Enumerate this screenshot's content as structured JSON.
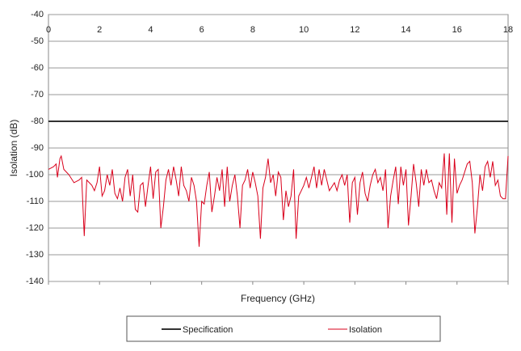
{
  "chart_data": {
    "type": "line",
    "xlabel": "Frequency (GHz)",
    "ylabel": "Isolation (dB)",
    "xlim": [
      0,
      18
    ],
    "xticks": [
      0,
      2,
      4,
      6,
      8,
      10,
      12,
      14,
      16,
      18
    ],
    "ylim": [
      -140,
      -40
    ],
    "yticks": [
      -40,
      -50,
      -60,
      -70,
      -80,
      -90,
      -100,
      -110,
      -120,
      -130,
      -140
    ],
    "grid": true,
    "legend": "bottom",
    "series": [
      {
        "name": "Specification",
        "color": "#333333",
        "x": [
          0,
          18
        ],
        "values": [
          -80,
          -80
        ]
      },
      {
        "name": "Isolation",
        "color": "#d9001b",
        "x": [
          0,
          0.2,
          0.3,
          0.35,
          0.45,
          0.5,
          0.6,
          0.8,
          1.0,
          1.2,
          1.3,
          1.4,
          1.5,
          1.7,
          1.8,
          1.9,
          2.0,
          2.1,
          2.2,
          2.3,
          2.4,
          2.5,
          2.6,
          2.7,
          2.8,
          2.9,
          3.0,
          3.1,
          3.2,
          3.3,
          3.4,
          3.5,
          3.6,
          3.7,
          3.8,
          3.9,
          4.0,
          4.1,
          4.2,
          4.3,
          4.4,
          4.5,
          4.6,
          4.7,
          4.8,
          4.9,
          5.0,
          5.1,
          5.2,
          5.3,
          5.4,
          5.5,
          5.6,
          5.7,
          5.8,
          5.9,
          6.0,
          6.1,
          6.2,
          6.3,
          6.4,
          6.5,
          6.6,
          6.7,
          6.8,
          6.9,
          7.0,
          7.1,
          7.2,
          7.3,
          7.4,
          7.5,
          7.6,
          7.7,
          7.8,
          7.9,
          8.0,
          8.1,
          8.2,
          8.3,
          8.4,
          8.5,
          8.6,
          8.7,
          8.8,
          8.9,
          9.0,
          9.1,
          9.2,
          9.3,
          9.4,
          9.5,
          9.6,
          9.7,
          9.8,
          9.9,
          10.0,
          10.1,
          10.2,
          10.4,
          10.5,
          10.6,
          10.7,
          10.8,
          10.9,
          11.0,
          11.2,
          11.3,
          11.4,
          11.5,
          11.6,
          11.7,
          11.8,
          11.9,
          12.0,
          12.1,
          12.2,
          12.3,
          12.4,
          12.5,
          12.6,
          12.7,
          12.8,
          12.9,
          13.0,
          13.1,
          13.2,
          13.3,
          13.4,
          13.5,
          13.6,
          13.7,
          13.8,
          13.9,
          14.0,
          14.1,
          14.2,
          14.3,
          14.4,
          14.5,
          14.6,
          14.7,
          14.8,
          14.9,
          15.0,
          15.1,
          15.2,
          15.3,
          15.4,
          15.5,
          15.6,
          15.7,
          15.8,
          15.9,
          16.0,
          16.1,
          16.2,
          16.4,
          16.5,
          16.6,
          16.7,
          16.8,
          16.9,
          17.0,
          17.1,
          17.2,
          17.3,
          17.4,
          17.5,
          17.6,
          17.7,
          17.8,
          17.9,
          18.0
        ],
        "values": [
          -98,
          -97,
          -96,
          -101,
          -94,
          -93,
          -98,
          -100,
          -103,
          -102,
          -101,
          -123,
          -102,
          -104,
          -106,
          -103,
          -97,
          -108,
          -106,
          -100,
          -104,
          -98,
          -107,
          -109,
          -105,
          -110,
          -101,
          -98,
          -108,
          -100,
          -113,
          -114,
          -104,
          -103,
          -112,
          -104,
          -97,
          -109,
          -99,
          -98,
          -120,
          -112,
          -102,
          -98,
          -104,
          -97,
          -102,
          -108,
          -97,
          -104,
          -106,
          -110,
          -101,
          -104,
          -110,
          -127,
          -110,
          -111,
          -104,
          -99,
          -114,
          -108,
          -101,
          -106,
          -98,
          -112,
          -97,
          -110,
          -104,
          -100,
          -108,
          -120,
          -104,
          -102,
          -98,
          -105,
          -99,
          -103,
          -108,
          -124,
          -105,
          -101,
          -94,
          -103,
          -100,
          -108,
          -99,
          -101,
          -117,
          -106,
          -112,
          -108,
          -98,
          -124,
          -108,
          -106,
          -104,
          -101,
          -105,
          -97,
          -105,
          -98,
          -104,
          -98,
          -102,
          -106,
          -103,
          -106,
          -102,
          -100,
          -104,
          -100,
          -118,
          -103,
          -101,
          -115,
          -103,
          -99,
          -107,
          -110,
          -104,
          -100,
          -98,
          -103,
          -101,
          -106,
          -98,
          -120,
          -108,
          -102,
          -97,
          -111,
          -97,
          -104,
          -98,
          -119,
          -108,
          -96,
          -103,
          -112,
          -98,
          -104,
          -98,
          -103,
          -102,
          -106,
          -109,
          -103,
          -105,
          -92,
          -115,
          -92,
          -118,
          -94,
          -107,
          -104,
          -102,
          -96,
          -95,
          -103,
          -122,
          -112,
          -100,
          -106,
          -97,
          -95,
          -101,
          -95,
          -104,
          -102,
          -108,
          -109,
          -109,
          -93
        ]
      }
    ]
  }
}
